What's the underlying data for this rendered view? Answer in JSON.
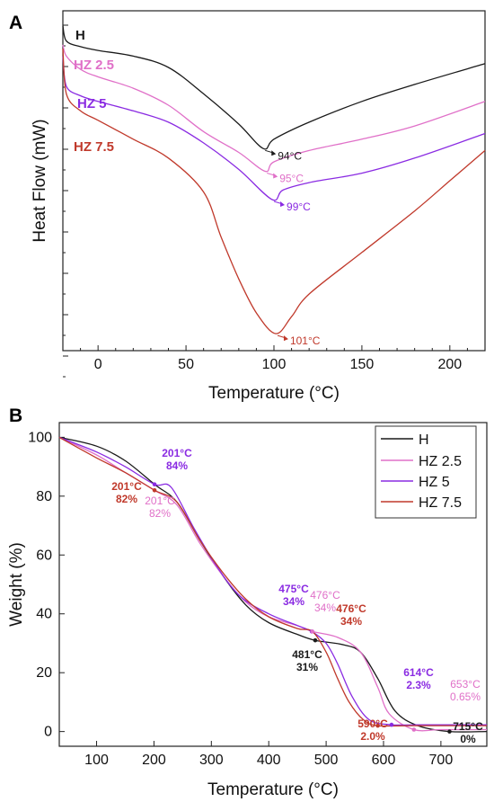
{
  "colors": {
    "H": "#1a1a1a",
    "HZ2.5": "#e070c8",
    "HZ5": "#8a2be2",
    "HZ7.5": "#c0392b"
  },
  "chart_data": [
    {
      "panel": "A",
      "type": "line",
      "xlabel": "Temperature (°C)",
      "ylabel": "Heat Flow (mW)",
      "xlim": [
        -20,
        220
      ],
      "xticks": [
        0,
        50,
        100,
        150,
        200
      ],
      "y_tick_labels": "none",
      "legend": "inline-labels-left",
      "series": [
        {
          "name": "H",
          "key": "H",
          "x": [
            -20,
            -18,
            -10,
            0,
            20,
            40,
            60,
            80,
            94,
            100,
            120,
            150,
            180,
            220
          ],
          "y": [
            -0.2,
            -0.6,
            -0.75,
            -0.85,
            -1.0,
            -1.3,
            -2.0,
            -2.8,
            -3.45,
            -3.2,
            -2.75,
            -2.2,
            -1.75,
            -1.2
          ]
        },
        {
          "name": "HZ 2.5",
          "key": "HZ2.5",
          "x": [
            -20,
            -18,
            -10,
            0,
            20,
            40,
            60,
            80,
            95,
            100,
            120,
            150,
            180,
            220
          ],
          "y": [
            -0.7,
            -1.0,
            -1.35,
            -1.55,
            -1.85,
            -2.3,
            -3.0,
            -3.55,
            -4.05,
            -3.8,
            -3.5,
            -3.2,
            -2.85,
            -2.2
          ]
        },
        {
          "name": "HZ 5",
          "key": "HZ5",
          "x": [
            -20,
            -18,
            -10,
            0,
            20,
            40,
            60,
            80,
            99,
            105,
            120,
            150,
            180,
            220
          ],
          "y": [
            -1.0,
            -1.8,
            -2.05,
            -2.2,
            -2.45,
            -2.75,
            -3.3,
            -4.0,
            -4.8,
            -4.55,
            -4.35,
            -4.1,
            -3.7,
            -3.05
          ]
        },
        {
          "name": "HZ 7.5",
          "key": "HZ7.5",
          "x": [
            -20,
            -18,
            -10,
            0,
            20,
            40,
            60,
            70,
            80,
            90,
            101,
            110,
            120,
            150,
            180,
            200,
            220
          ],
          "y": [
            -0.8,
            -2.0,
            -2.45,
            -2.7,
            -3.2,
            -3.7,
            -4.6,
            -5.8,
            -6.9,
            -7.8,
            -8.35,
            -7.9,
            -7.3,
            -6.2,
            -5.1,
            -4.3,
            -3.5
          ]
        }
      ],
      "annotations": [
        {
          "text": "94°C",
          "series": "H",
          "x": 94
        },
        {
          "text": "95°C",
          "series": "HZ2.5",
          "x": 95
        },
        {
          "text": "99°C",
          "series": "HZ5",
          "x": 99
        },
        {
          "text": "101°C",
          "series": "HZ7.5",
          "x": 101
        }
      ]
    },
    {
      "panel": "B",
      "type": "line",
      "xlabel": "Temperature (°C)",
      "ylabel": "Weight (%)",
      "xlim": [
        35,
        780
      ],
      "ylim": [
        -5,
        105
      ],
      "xticks": [
        100,
        200,
        300,
        400,
        500,
        600,
        700
      ],
      "yticks": [
        0,
        20,
        40,
        60,
        80,
        100
      ],
      "legend": "top-right",
      "series": [
        {
          "name": "H",
          "key": "H",
          "x": [
            35,
            100,
            150,
            201,
            240,
            280,
            320,
            360,
            400,
            450,
            481,
            530,
            560,
            590,
            620,
            660,
            715,
            780
          ],
          "y": [
            100,
            97,
            92,
            84,
            78,
            65,
            53,
            43,
            37,
            33,
            31,
            29.5,
            27,
            18,
            7,
            2,
            0,
            0
          ]
        },
        {
          "name": "HZ 2.5",
          "key": "HZ2.5",
          "x": [
            35,
            100,
            150,
            201,
            240,
            280,
            320,
            360,
            400,
            450,
            476,
            520,
            560,
            590,
            610,
            653,
            700,
            780
          ],
          "y": [
            100,
            94,
            88,
            82,
            77,
            64,
            53,
            44,
            39,
            36,
            34,
            32,
            27,
            15,
            6,
            0.65,
            0.65,
            0.65
          ]
        },
        {
          "name": "HZ 5",
          "key": "HZ5",
          "x": [
            35,
            100,
            150,
            201,
            230,
            270,
            310,
            350,
            400,
            450,
            475,
            500,
            520,
            545,
            575,
            614,
            660,
            780
          ],
          "y": [
            100,
            95,
            90,
            84,
            83,
            69,
            56,
            46,
            40,
            36,
            34,
            30,
            23,
            12,
            4,
            2.3,
            2.3,
            2.3
          ]
        },
        {
          "name": "HZ 7.5",
          "key": "HZ7.5",
          "x": [
            35,
            100,
            150,
            201,
            240,
            280,
            320,
            360,
            400,
            450,
            476,
            500,
            520,
            540,
            565,
            590,
            650,
            780
          ],
          "y": [
            100,
            93,
            88,
            82,
            78,
            65,
            54,
            45,
            39,
            35,
            34,
            27,
            18,
            10,
            4,
            2,
            2,
            2
          ]
        }
      ],
      "annotations": [
        {
          "text": "201°C",
          "sub": "84%",
          "color": "HZ5",
          "bold": true
        },
        {
          "text": "201°C",
          "sub": "82%",
          "color": "HZ7.5",
          "bold": true
        },
        {
          "text": "201°C",
          "sub": "82%",
          "color": "HZ2.5",
          "bold": false
        },
        {
          "text": "475°C",
          "sub": "34%",
          "color": "HZ5",
          "bold": true
        },
        {
          "text": "476°C",
          "sub": "34%",
          "color": "HZ2.5",
          "bold": false
        },
        {
          "text": "476°C",
          "sub": "34%",
          "color": "HZ7.5",
          "bold": true
        },
        {
          "text": "481°C",
          "sub": "31%",
          "color": "H",
          "bold": true
        },
        {
          "text": "614°C",
          "sub": "2.3%",
          "color": "HZ5",
          "bold": true
        },
        {
          "text": "653°C",
          "sub": "0.65%",
          "color": "HZ2.5",
          "bold": false
        },
        {
          "text": "590°C",
          "sub": "2.0%",
          "color": "HZ7.5",
          "bold": true
        },
        {
          "text": "715°C",
          "sub": "0%",
          "color": "H",
          "bold": true
        }
      ],
      "markers": [
        {
          "series": "HZ5",
          "x": 201,
          "y": 84
        },
        {
          "series": "HZ7.5",
          "x": 201,
          "y": 82
        },
        {
          "series": "HZ5",
          "x": 475,
          "y": 34
        },
        {
          "series": "HZ2.5",
          "x": 476,
          "y": 34
        },
        {
          "series": "H",
          "x": 481,
          "y": 31
        },
        {
          "series": "HZ5",
          "x": 614,
          "y": 2.3
        },
        {
          "series": "HZ2.5",
          "x": 653,
          "y": 0.65
        },
        {
          "series": "HZ7.5",
          "x": 590,
          "y": 2
        },
        {
          "series": "H",
          "x": 715,
          "y": 0
        }
      ]
    }
  ],
  "panels": {
    "a_label": "A",
    "b_label": "B"
  }
}
